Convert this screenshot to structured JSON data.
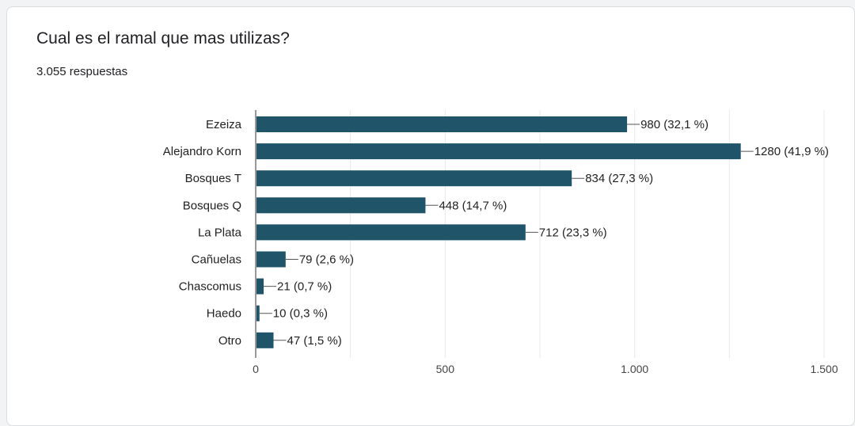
{
  "question": {
    "title": "Cual es el ramal que mas utilizas?",
    "responses": "3.055 respuestas"
  },
  "colors": {
    "bar": "#1f5469",
    "grid": "#e8e8e8",
    "axis": "#333333"
  },
  "chart_data": {
    "type": "bar",
    "orientation": "horizontal",
    "categories": [
      "Ezeiza",
      "Alejandro Korn",
      "Bosques T",
      "Bosques Q",
      "La Plata",
      "Cañuelas",
      "Chascomus",
      "Haedo",
      "Otro"
    ],
    "values": [
      980,
      1280,
      834,
      448,
      712,
      79,
      21,
      10,
      47
    ],
    "data_labels": [
      "980 (32,1 %)",
      "1280 (41,9 %)",
      "834 (27,3 %)",
      "448 (14,7 %)",
      "712 (23,3 %)",
      "79 (2,6 %)",
      "21 (0,7 %)",
      "10 (0,3 %)",
      "47 (1,5 %)"
    ],
    "xticks": [
      0,
      500,
      1000,
      1500
    ],
    "xtick_labels": [
      "0",
      "500",
      "1.000",
      "1.500"
    ],
    "xlim": [
      0,
      1500
    ],
    "grid": true,
    "legend": false
  }
}
